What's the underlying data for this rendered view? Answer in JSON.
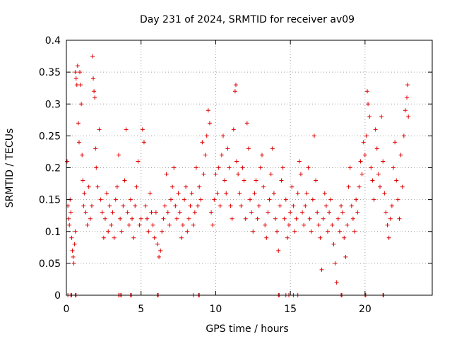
{
  "chart_data": {
    "type": "scatter",
    "title": "Day 231 of 2024, SRMTID for receiver av09",
    "xlabel": "GPS time / hours",
    "ylabel": "SRMTID / TECUs",
    "xlim": [
      0,
      24.5
    ],
    "ylim": [
      0,
      0.4
    ],
    "xticks": [
      0,
      5,
      10,
      15,
      20
    ],
    "xtick_labels": [
      "0",
      "5",
      "10",
      "15",
      "20"
    ],
    "yticks": [
      0,
      0.05,
      0.1,
      0.15,
      0.2,
      0.25,
      0.3,
      0.35,
      0.4
    ],
    "ytick_labels": [
      "0",
      "0.05",
      "0.1",
      "0.15",
      "0.2",
      "0.25",
      "0.3",
      "0.35",
      "0.4"
    ],
    "grid": true,
    "marker": "+",
    "color": "#e00000",
    "series": [
      {
        "name": "SRMTID",
        "points": [
          [
            0.05,
            0.21
          ],
          [
            0.1,
            0.14
          ],
          [
            0.15,
            0.12
          ],
          [
            0.2,
            0.11
          ],
          [
            0.25,
            0.15
          ],
          [
            0.3,
            0.13
          ],
          [
            0.35,
            0.09
          ],
          [
            0.4,
            0.07
          ],
          [
            0.45,
            0.06
          ],
          [
            0.5,
            0.05
          ],
          [
            0.55,
            0.08
          ],
          [
            0.6,
            0.1
          ],
          [
            0.6,
            0.35
          ],
          [
            0.65,
            0.34
          ],
          [
            0.7,
            0.33
          ],
          [
            0.75,
            0.36
          ],
          [
            0.8,
            0.27
          ],
          [
            0.85,
            0.24
          ],
          [
            0.9,
            0.35
          ],
          [
            0.95,
            0.33
          ],
          [
            1.0,
            0.3
          ],
          [
            1.05,
            0.22
          ],
          [
            1.1,
            0.18
          ],
          [
            1.15,
            0.14
          ],
          [
            1.2,
            0.16
          ],
          [
            1.3,
            0.13
          ],
          [
            1.4,
            0.11
          ],
          [
            1.5,
            0.17
          ],
          [
            1.6,
            0.12
          ],
          [
            1.7,
            0.14
          ],
          [
            1.75,
            0.375
          ],
          [
            1.8,
            0.34
          ],
          [
            1.85,
            0.32
          ],
          [
            1.9,
            0.31
          ],
          [
            1.95,
            0.23
          ],
          [
            2.0,
            0.2
          ],
          [
            2.1,
            0.17
          ],
          [
            2.2,
            0.26
          ],
          [
            2.3,
            0.15
          ],
          [
            2.4,
            0.13
          ],
          [
            2.5,
            0.09
          ],
          [
            2.6,
            0.12
          ],
          [
            2.7,
            0.16
          ],
          [
            2.8,
            0.1
          ],
          [
            2.9,
            0.14
          ],
          [
            3.0,
            0.11
          ],
          [
            3.1,
            0.13
          ],
          [
            3.2,
            0.09
          ],
          [
            3.3,
            0.15
          ],
          [
            3.4,
            0.17
          ],
          [
            3.5,
            0.22
          ],
          [
            3.6,
            0.12
          ],
          [
            3.7,
            0.1
          ],
          [
            3.8,
            0.14
          ],
          [
            3.9,
            0.18
          ],
          [
            4.0,
            0.26
          ],
          [
            4.1,
            0.13
          ],
          [
            4.2,
            0.11
          ],
          [
            4.3,
            0.15
          ],
          [
            4.4,
            0.12
          ],
          [
            4.5,
            0.09
          ],
          [
            4.6,
            0.14
          ],
          [
            4.7,
            0.17
          ],
          [
            4.8,
            0.21
          ],
          [
            4.9,
            0.11
          ],
          [
            5.0,
            0.12
          ],
          [
            5.1,
            0.26
          ],
          [
            5.2,
            0.24
          ],
          [
            5.3,
            0.14
          ],
          [
            5.4,
            0.12
          ],
          [
            5.5,
            0.1
          ],
          [
            5.6,
            0.16
          ],
          [
            5.7,
            0.13
          ],
          [
            5.8,
            0.11
          ],
          [
            5.9,
            0.09
          ],
          [
            6.0,
            0.13
          ],
          [
            6.1,
            0.08
          ],
          [
            6.2,
            0.06
          ],
          [
            6.3,
            0.07
          ],
          [
            6.4,
            0.1
          ],
          [
            6.5,
            0.12
          ],
          [
            6.6,
            0.14
          ],
          [
            6.7,
            0.19
          ],
          [
            6.8,
            0.13
          ],
          [
            6.9,
            0.11
          ],
          [
            7.0,
            0.15
          ],
          [
            7.1,
            0.17
          ],
          [
            7.2,
            0.2
          ],
          [
            7.3,
            0.14
          ],
          [
            7.4,
            0.12
          ],
          [
            7.5,
            0.16
          ],
          [
            7.6,
            0.13
          ],
          [
            7.7,
            0.09
          ],
          [
            7.8,
            0.11
          ],
          [
            7.9,
            0.15
          ],
          [
            8.0,
            0.17
          ],
          [
            8.1,
            0.1
          ],
          [
            8.2,
            0.12
          ],
          [
            8.3,
            0.14
          ],
          [
            8.4,
            0.16
          ],
          [
            8.5,
            0.11
          ],
          [
            8.6,
            0.13
          ],
          [
            8.7,
            0.2
          ],
          [
            8.8,
            0.14
          ],
          [
            8.9,
            0.17
          ],
          [
            9.0,
            0.15
          ],
          [
            9.1,
            0.24
          ],
          [
            9.2,
            0.19
          ],
          [
            9.3,
            0.22
          ],
          [
            9.4,
            0.25
          ],
          [
            9.5,
            0.29
          ],
          [
            9.6,
            0.27
          ],
          [
            9.7,
            0.13
          ],
          [
            9.8,
            0.11
          ],
          [
            9.9,
            0.15
          ],
          [
            10.0,
            0.19
          ],
          [
            10.1,
            0.16
          ],
          [
            10.2,
            0.2
          ],
          [
            10.3,
            0.14
          ],
          [
            10.4,
            0.22
          ],
          [
            10.5,
            0.25
          ],
          [
            10.6,
            0.18
          ],
          [
            10.7,
            0.16
          ],
          [
            10.8,
            0.23
          ],
          [
            10.9,
            0.2
          ],
          [
            11.0,
            0.14
          ],
          [
            11.1,
            0.12
          ],
          [
            11.2,
            0.26
          ],
          [
            11.3,
            0.32
          ],
          [
            11.35,
            0.33
          ],
          [
            11.4,
            0.21
          ],
          [
            11.5,
            0.19
          ],
          [
            11.6,
            0.16
          ],
          [
            11.7,
            0.14
          ],
          [
            11.8,
            0.2
          ],
          [
            11.9,
            0.18
          ],
          [
            12.0,
            0.12
          ],
          [
            12.1,
            0.27
          ],
          [
            12.2,
            0.23
          ],
          [
            12.3,
            0.15
          ],
          [
            12.4,
            0.13
          ],
          [
            12.5,
            0.1
          ],
          [
            12.6,
            0.16
          ],
          [
            12.7,
            0.18
          ],
          [
            12.8,
            0.12
          ],
          [
            12.9,
            0.14
          ],
          [
            13.0,
            0.2
          ],
          [
            13.1,
            0.22
          ],
          [
            13.2,
            0.17
          ],
          [
            13.3,
            0.11
          ],
          [
            13.4,
            0.09
          ],
          [
            13.5,
            0.13
          ],
          [
            13.6,
            0.15
          ],
          [
            13.7,
            0.19
          ],
          [
            13.8,
            0.23
          ],
          [
            13.9,
            0.16
          ],
          [
            14.0,
            0.12
          ],
          [
            14.1,
            0.1
          ],
          [
            14.2,
            0.07
          ],
          [
            14.3,
            0.14
          ],
          [
            14.4,
            0.18
          ],
          [
            14.5,
            0.2
          ],
          [
            14.6,
            0.12
          ],
          [
            14.7,
            0.15
          ],
          [
            14.8,
            0.09
          ],
          [
            14.9,
            0.11
          ],
          [
            15.0,
            0.13
          ],
          [
            15.1,
            0.17
          ],
          [
            15.2,
            0.14
          ],
          [
            15.3,
            0.1
          ],
          [
            15.4,
            0.12
          ],
          [
            15.5,
            0.16
          ],
          [
            15.6,
            0.21
          ],
          [
            15.7,
            0.19
          ],
          [
            15.8,
            0.13
          ],
          [
            15.9,
            0.11
          ],
          [
            16.0,
            0.14
          ],
          [
            16.1,
            0.16
          ],
          [
            16.2,
            0.2
          ],
          [
            16.3,
            0.12
          ],
          [
            16.4,
            0.1
          ],
          [
            16.5,
            0.15
          ],
          [
            16.6,
            0.25
          ],
          [
            16.7,
            0.18
          ],
          [
            16.8,
            0.13
          ],
          [
            16.9,
            0.11
          ],
          [
            17.0,
            0.09
          ],
          [
            17.1,
            0.04
          ],
          [
            17.2,
            0.12
          ],
          [
            17.3,
            0.16
          ],
          [
            17.4,
            0.14
          ],
          [
            17.5,
            0.1
          ],
          [
            17.6,
            0.13
          ],
          [
            17.7,
            0.15
          ],
          [
            17.8,
            0.11
          ],
          [
            17.9,
            0.08
          ],
          [
            18.0,
            0.05
          ],
          [
            18.1,
            0.02
          ],
          [
            18.2,
            0.12
          ],
          [
            18.3,
            0.1
          ],
          [
            18.4,
            0.14
          ],
          [
            18.5,
            0.13
          ],
          [
            18.6,
            0.09
          ],
          [
            18.7,
            0.06
          ],
          [
            18.8,
            0.11
          ],
          [
            18.9,
            0.17
          ],
          [
            19.0,
            0.2
          ],
          [
            19.1,
            0.14
          ],
          [
            19.2,
            0.12
          ],
          [
            19.3,
            0.1
          ],
          [
            19.4,
            0.15
          ],
          [
            19.5,
            0.13
          ],
          [
            19.6,
            0.17
          ],
          [
            19.7,
            0.21
          ],
          [
            19.8,
            0.19
          ],
          [
            19.9,
            0.24
          ],
          [
            20.0,
            0.22
          ],
          [
            20.1,
            0.25
          ],
          [
            20.15,
            0.32
          ],
          [
            20.2,
            0.3
          ],
          [
            20.3,
            0.28
          ],
          [
            20.4,
            0.2
          ],
          [
            20.5,
            0.18
          ],
          [
            20.6,
            0.15
          ],
          [
            20.7,
            0.26
          ],
          [
            20.8,
            0.23
          ],
          [
            20.9,
            0.19
          ],
          [
            21.0,
            0.17
          ],
          [
            21.1,
            0.28
          ],
          [
            21.2,
            0.21
          ],
          [
            21.3,
            0.16
          ],
          [
            21.4,
            0.13
          ],
          [
            21.5,
            0.11
          ],
          [
            21.6,
            0.09
          ],
          [
            21.7,
            0.12
          ],
          [
            21.8,
            0.14
          ],
          [
            21.9,
            0.2
          ],
          [
            22.0,
            0.24
          ],
          [
            22.1,
            0.18
          ],
          [
            22.2,
            0.15
          ],
          [
            22.3,
            0.12
          ],
          [
            22.4,
            0.22
          ],
          [
            22.5,
            0.17
          ],
          [
            22.6,
            0.25
          ],
          [
            22.7,
            0.29
          ],
          [
            22.8,
            0.31
          ],
          [
            22.85,
            0.33
          ],
          [
            22.9,
            0.28
          ]
        ]
      }
    ],
    "zero_points_x": [
      0.1,
      0.3,
      0.35,
      0.6,
      0.65,
      3.5,
      3.6,
      3.7,
      4.3,
      4.35,
      6.1,
      6.15,
      8.5,
      8.85,
      8.9,
      14.2,
      14.25,
      14.7,
      14.9,
      15.2,
      15.5,
      18.4,
      18.45,
      20.0,
      20.05,
      21.2,
      21.25
    ]
  }
}
